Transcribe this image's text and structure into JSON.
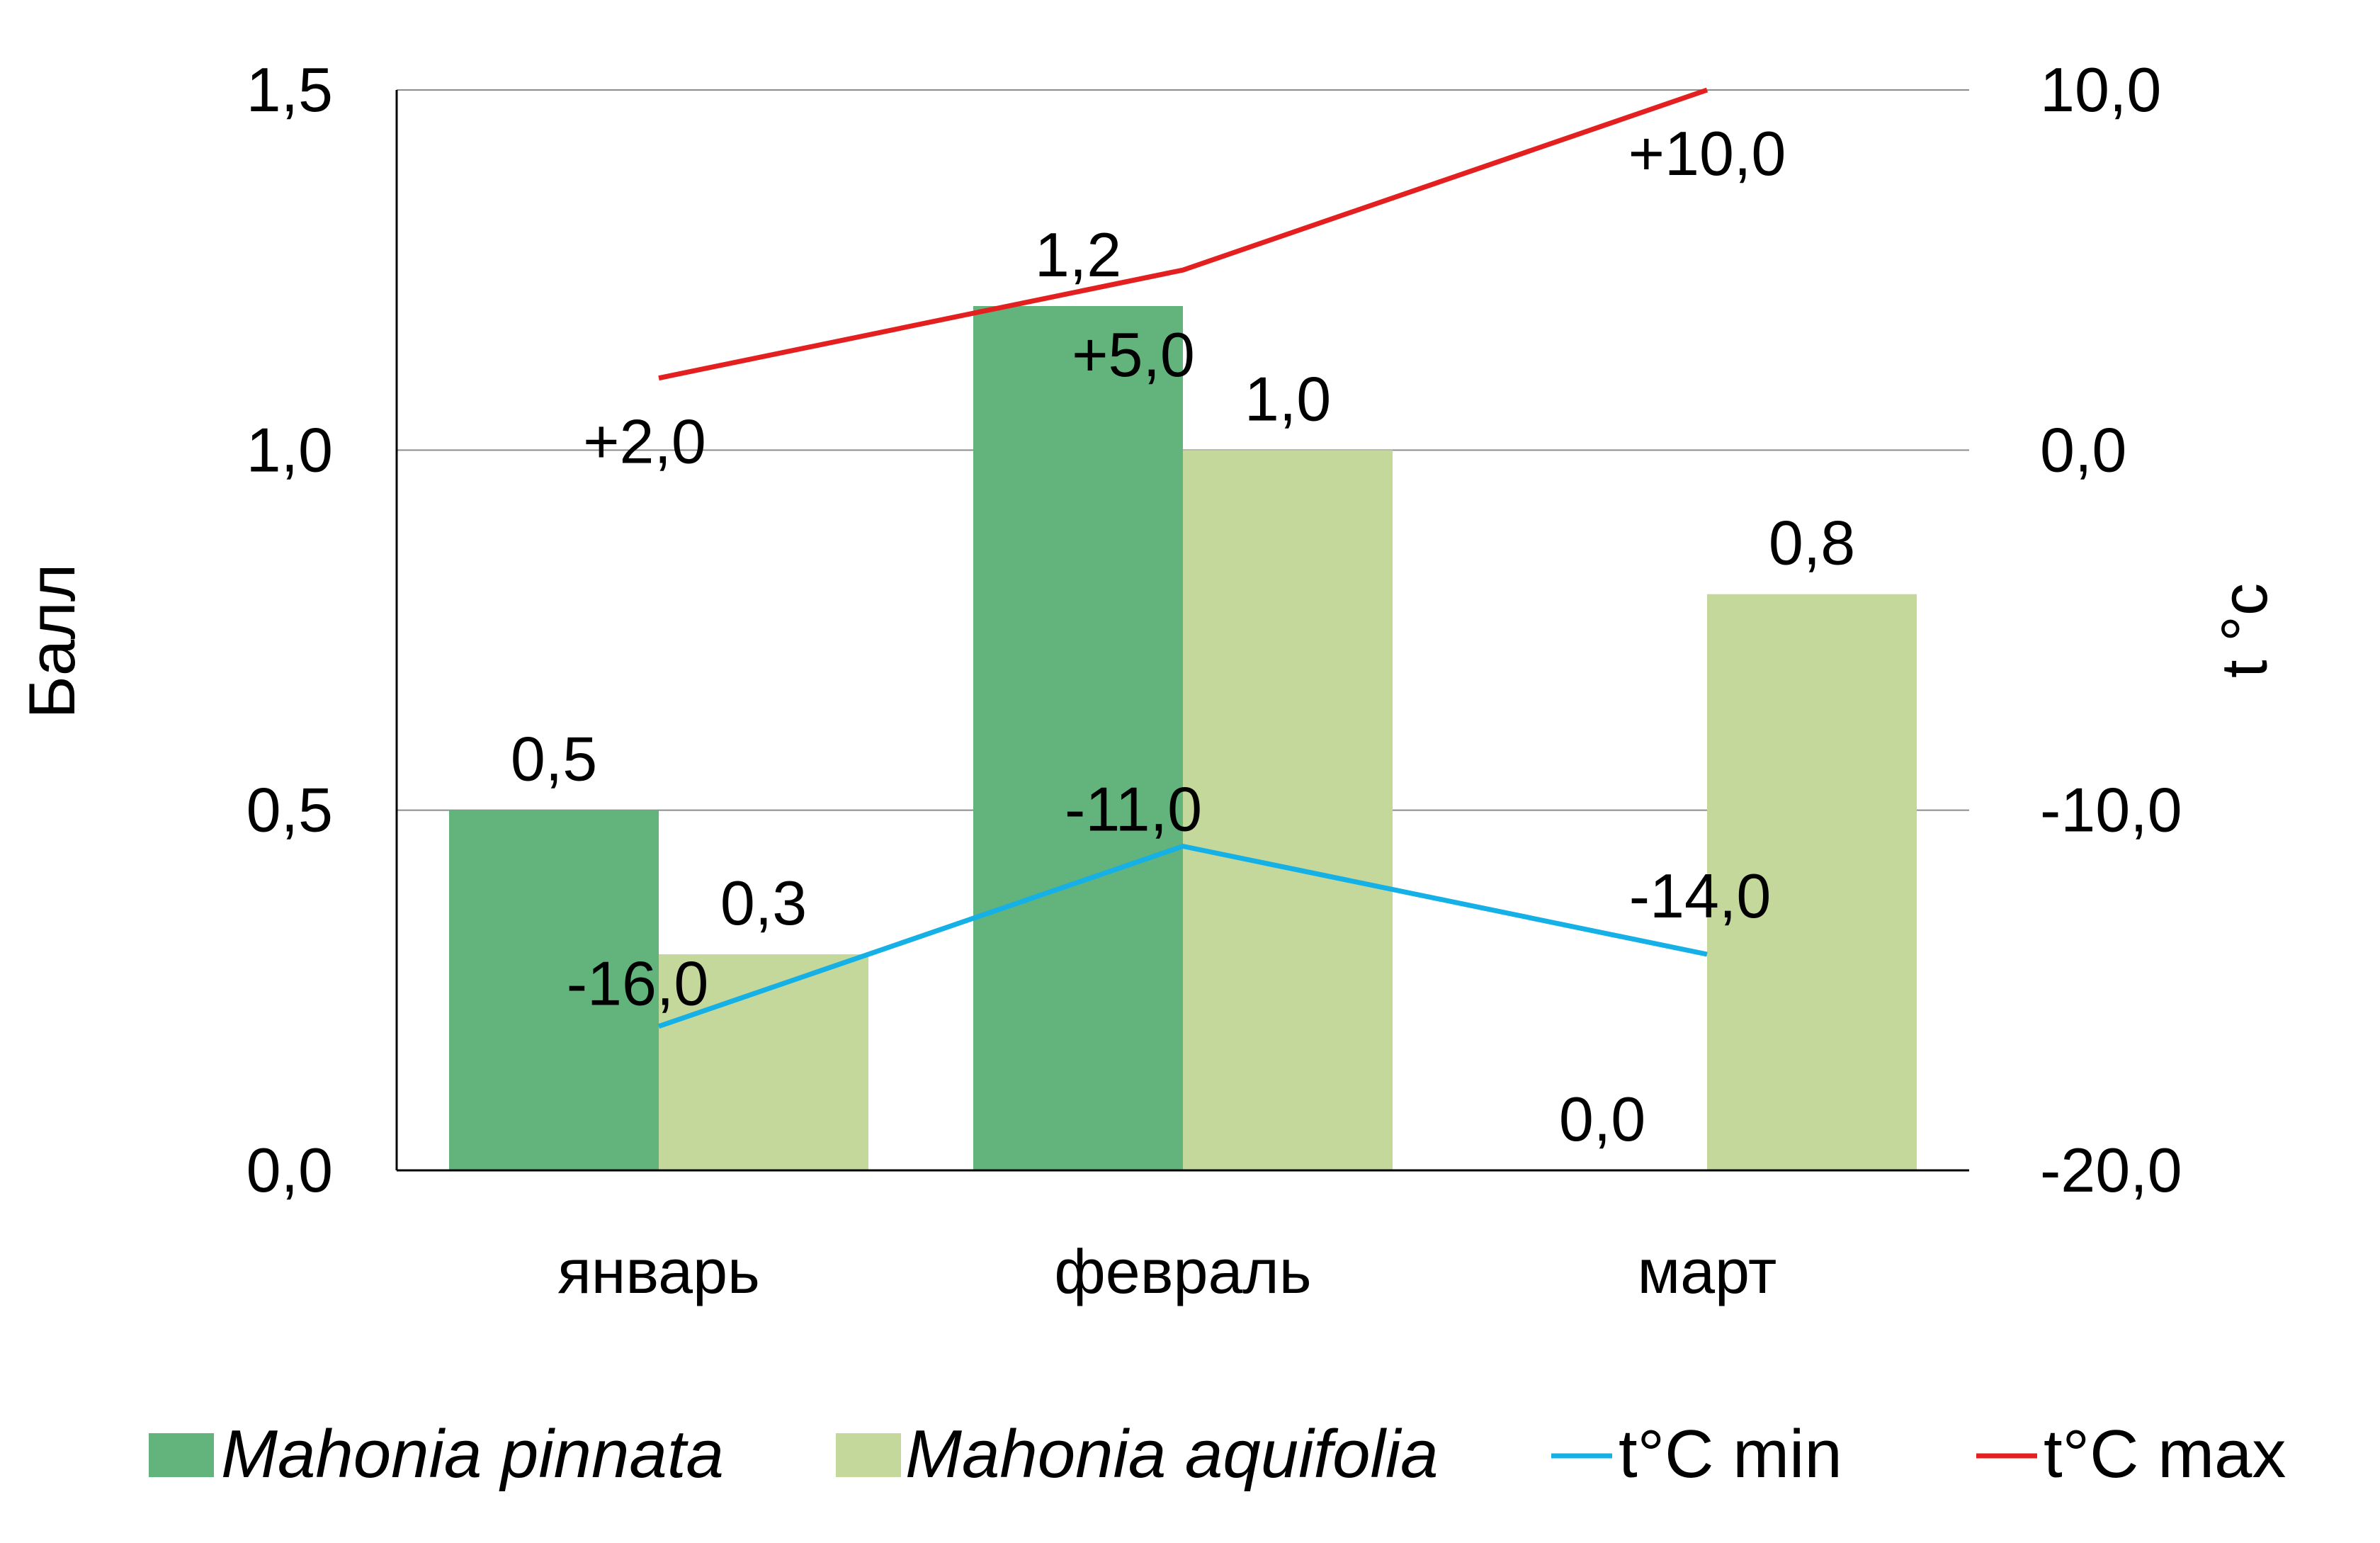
{
  "chart_data": {
    "type": "bar",
    "categories": [
      "январь",
      "февраль",
      "март"
    ],
    "series": [
      {
        "name": "Mahonia pinnata",
        "kind": "bar",
        "axis": "left",
        "color": "#62b37c",
        "values": [
          0.5,
          1.2,
          0.0
        ],
        "labels": [
          "0,5",
          "1,2",
          "0,0"
        ]
      },
      {
        "name": "Mahonia aquifolia",
        "kind": "bar",
        "axis": "left",
        "color": "#c4d89c",
        "values": [
          0.3,
          1.0,
          0.8
        ],
        "labels": [
          "0,3",
          "1,0",
          "0,8"
        ]
      },
      {
        "name": "t°C min",
        "kind": "line",
        "axis": "right",
        "color": "#14b0e6",
        "label_color": "#3a5f8f",
        "values": [
          -16.0,
          -11.0,
          -14.0
        ],
        "labels": [
          "-16,0",
          "-11,0",
          "-14,0"
        ]
      },
      {
        "name": "t°C max",
        "kind": "line",
        "axis": "right",
        "color": "#e41f1f",
        "label_color": "#c00000",
        "values": [
          2.0,
          5.0,
          10.0
        ],
        "labels": [
          "+2,0",
          "+5,0",
          "+10,0"
        ]
      }
    ],
    "ylabel": "Балл",
    "y2label": "t °c",
    "ylim": [
      0,
      1.5
    ],
    "y2lim": [
      -20,
      10
    ],
    "yticks": [
      "0,0",
      "0,5",
      "1,0",
      "1,5"
    ],
    "y2ticks": [
      "-20,0",
      "-10,0",
      "0,0",
      "10,0"
    ],
    "grid": true,
    "legend_position": "bottom"
  }
}
